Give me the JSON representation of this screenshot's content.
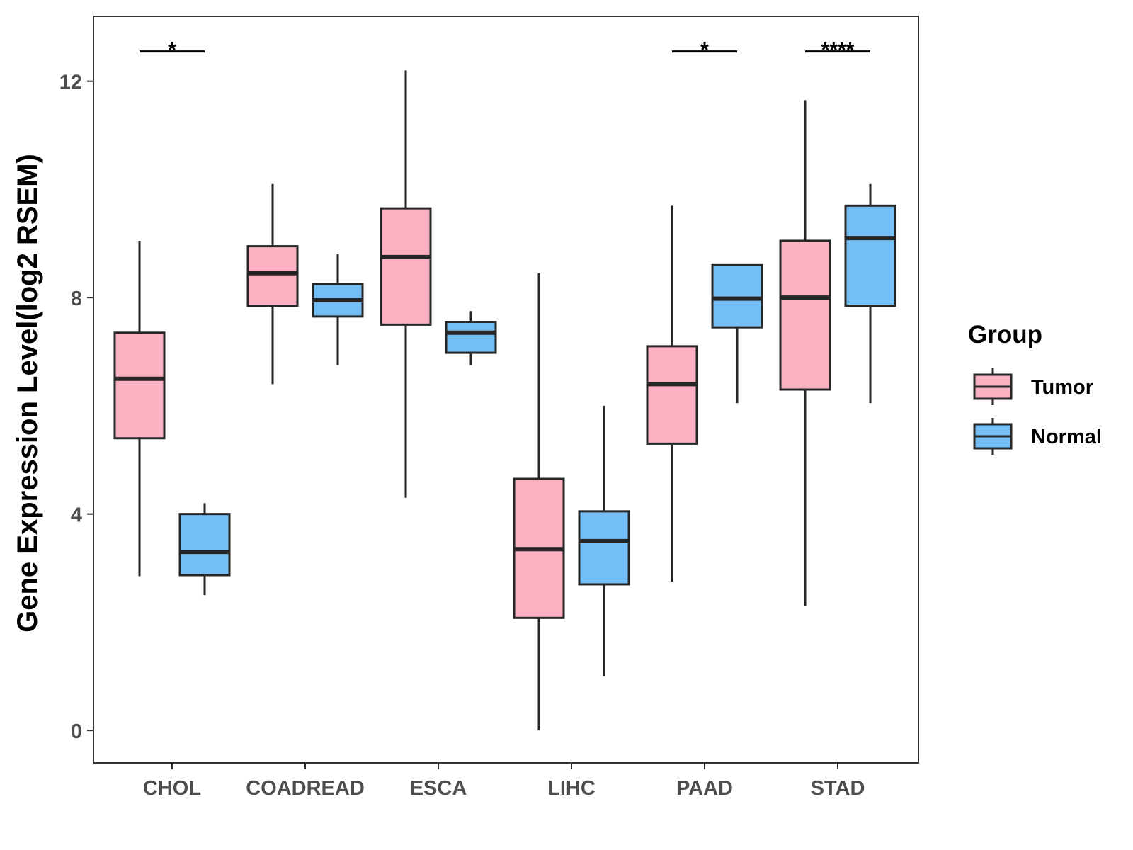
{
  "chart_data": {
    "type": "boxplot",
    "title": "",
    "xlabel": "",
    "ylabel": "Gene Expression Level(log2 RSEM)",
    "ylim": [
      -0.6,
      13.2
    ],
    "yticks": [
      0,
      4,
      8,
      12
    ],
    "grid": false,
    "categories": [
      "CHOL",
      "COADREAD",
      "ESCA",
      "LIHC",
      "PAAD",
      "STAD"
    ],
    "legend": {
      "title": "Group",
      "position": "right",
      "entries": [
        {
          "name": "Tumor",
          "color": "#FBB1C2"
        },
        {
          "name": "Normal",
          "color": "#74C0F6"
        }
      ]
    },
    "series": [
      {
        "name": "Tumor",
        "color": "#FBB1C2",
        "boxes": [
          {
            "category": "CHOL",
            "min": 2.85,
            "q1": 5.4,
            "median": 6.5,
            "q3": 7.35,
            "max": 9.05
          },
          {
            "category": "COADREAD",
            "min": 6.4,
            "q1": 7.85,
            "median": 8.45,
            "q3": 8.95,
            "max": 10.1
          },
          {
            "category": "ESCA",
            "min": 4.3,
            "q1": 7.5,
            "median": 8.75,
            "q3": 9.65,
            "max": 12.2
          },
          {
            "category": "LIHC",
            "min": 0.0,
            "q1": 2.08,
            "median": 3.35,
            "q3": 4.65,
            "max": 8.45
          },
          {
            "category": "PAAD",
            "min": 2.75,
            "q1": 5.3,
            "median": 6.4,
            "q3": 7.1,
            "max": 9.7
          },
          {
            "category": "STAD",
            "min": 2.3,
            "q1": 6.3,
            "median": 8.0,
            "q3": 9.05,
            "max": 11.65
          }
        ]
      },
      {
        "name": "Normal",
        "color": "#74C0F6",
        "boxes": [
          {
            "category": "CHOL",
            "min": 2.5,
            "q1": 2.87,
            "median": 3.3,
            "q3": 4.0,
            "max": 4.2
          },
          {
            "category": "COADREAD",
            "min": 6.75,
            "q1": 7.65,
            "median": 7.95,
            "q3": 8.25,
            "max": 8.8
          },
          {
            "category": "ESCA",
            "min": 6.75,
            "q1": 6.98,
            "median": 7.35,
            "q3": 7.55,
            "max": 7.75
          },
          {
            "category": "LIHC",
            "min": 1.0,
            "q1": 2.7,
            "median": 3.5,
            "q3": 4.05,
            "max": 6.0
          },
          {
            "category": "PAAD",
            "min": 6.05,
            "q1": 7.45,
            "median": 7.98,
            "q3": 8.6,
            "max": 8.6
          },
          {
            "category": "STAD",
            "min": 6.05,
            "q1": 7.85,
            "median": 9.1,
            "q3": 9.7,
            "max": 10.1
          }
        ]
      }
    ],
    "significance": [
      {
        "category": "CHOL",
        "label": "*",
        "y": 12.55
      },
      {
        "category": "PAAD",
        "label": "*",
        "y": 12.55
      },
      {
        "category": "STAD",
        "label": "****",
        "y": 12.55
      }
    ],
    "colors": {
      "axis": "#333333",
      "tick_text": "#4d4d4d",
      "box_stroke": "#262626"
    }
  }
}
